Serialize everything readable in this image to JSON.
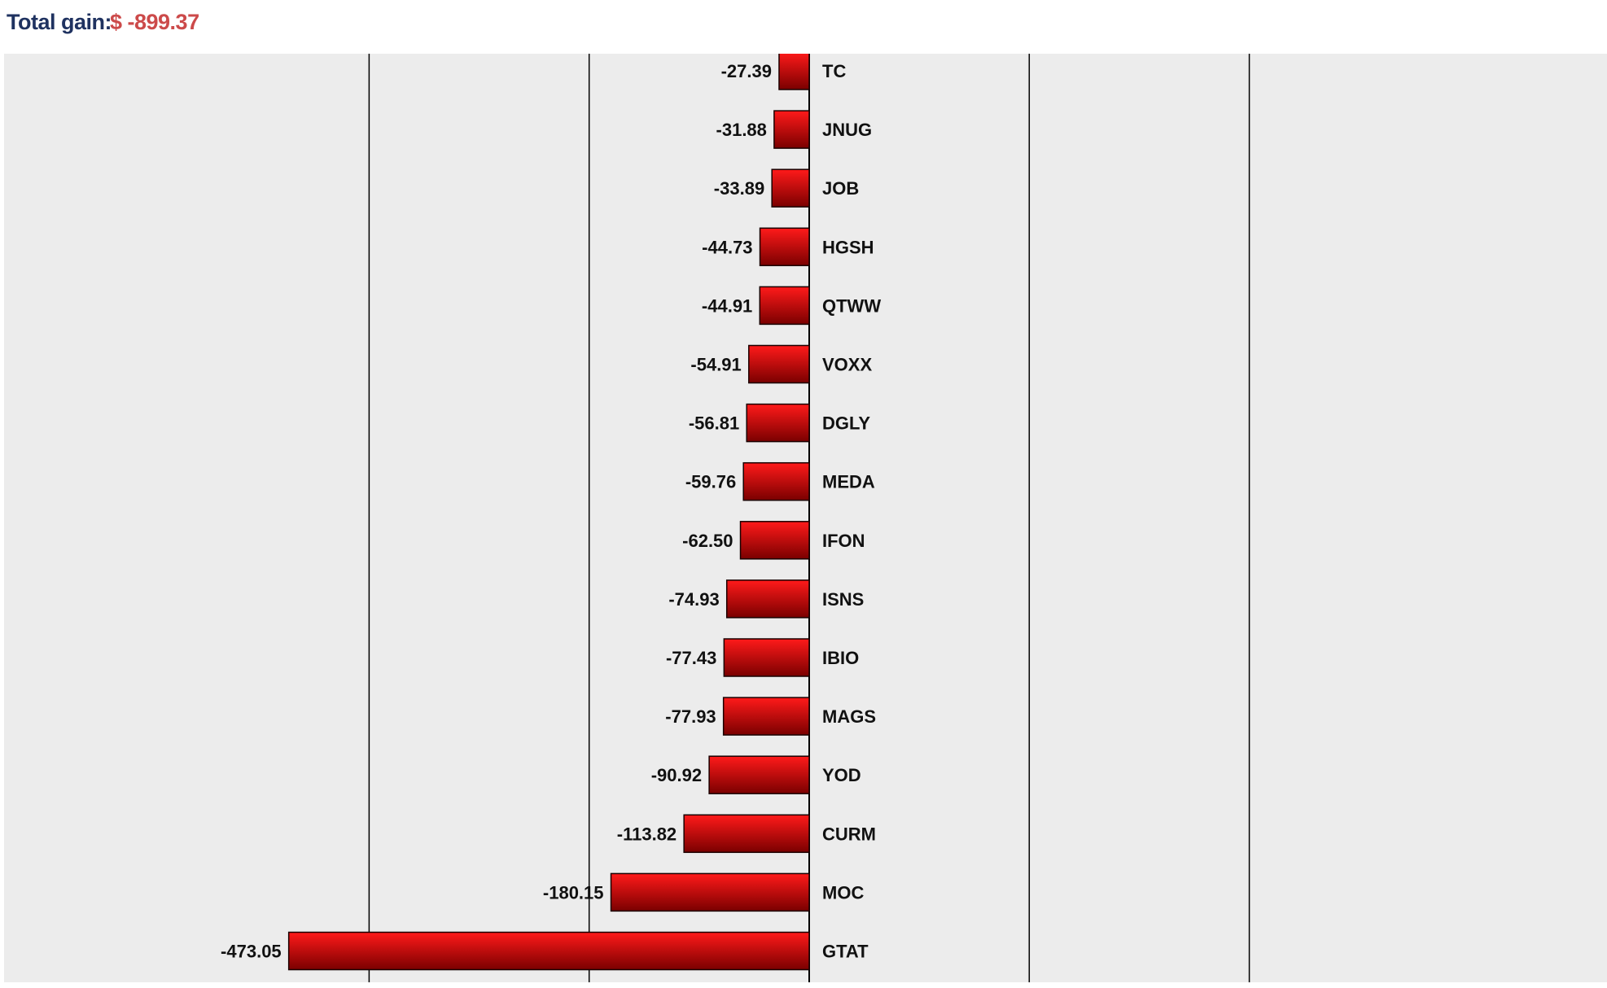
{
  "header": {
    "total_label": "Total gain:",
    "total_value": "$ -899.37"
  },
  "colors": {
    "plot_background": "#ececec",
    "bar_fill_top": "#ff1a1a",
    "bar_fill_bottom": "#7a0000",
    "bar_stroke": "#1a0000",
    "title_color": "#1f3260",
    "value_color": "#cc4a4a"
  },
  "chart_data": {
    "type": "bar",
    "orientation": "horizontal",
    "categories": [
      "TC",
      "JNUG",
      "JOB",
      "HGSH",
      "QTWW",
      "VOXX",
      "DGLY",
      "MEDA",
      "IFON",
      "ISNS",
      "IBIO",
      "MAGS",
      "YOD",
      "CURM",
      "MOC",
      "GTAT"
    ],
    "values": [
      -27.39,
      -31.88,
      -33.89,
      -44.73,
      -44.91,
      -54.91,
      -56.81,
      -59.76,
      -62.5,
      -74.93,
      -77.43,
      -77.93,
      -90.92,
      -113.82,
      -180.15,
      -473.05
    ],
    "value_labels": [
      "-27.39",
      "-31.88",
      "-33.89",
      "-44.73",
      "-44.91",
      "-54.91",
      "-56.81",
      "-59.76",
      "-62.50",
      "-74.93",
      "-77.43",
      "-77.93",
      "-90.92",
      "-113.82",
      "-180.15",
      "-473.05"
    ],
    "xlim": [
      -583,
      583
    ],
    "gridlines": [
      -400,
      -200,
      0,
      200,
      400
    ],
    "grid": true,
    "title": "",
    "xlabel": "",
    "ylabel": ""
  }
}
